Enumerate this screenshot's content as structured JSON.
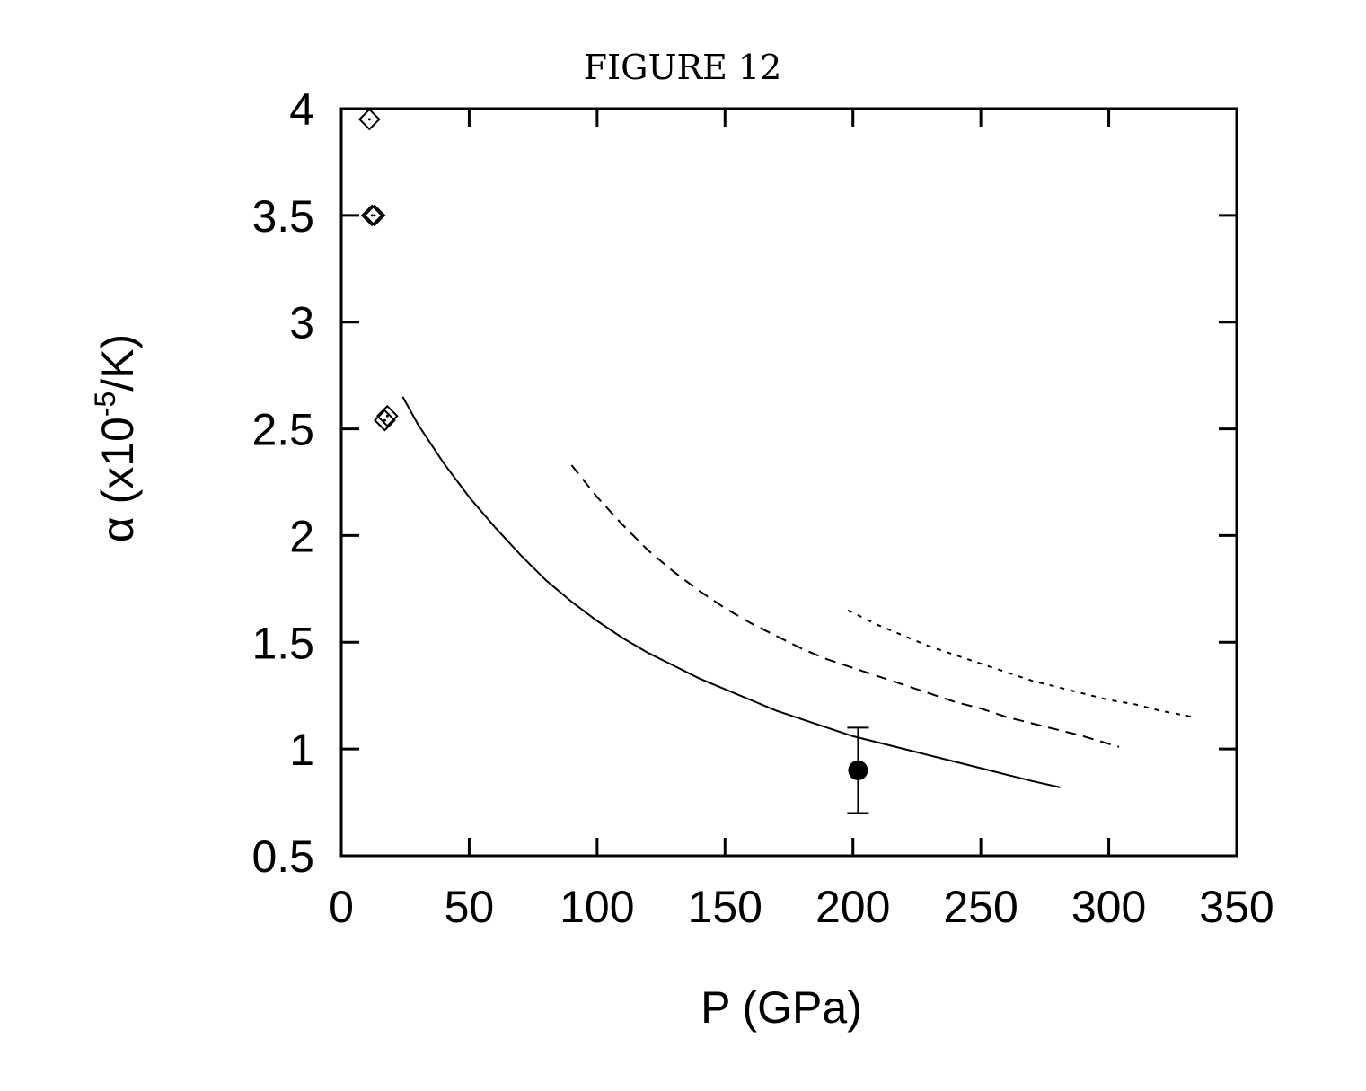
{
  "chart_data": {
    "type": "line",
    "title": "FIGURE 12",
    "xlabel": "P (GPa)",
    "ylabel": {
      "prefix": "α (x10",
      "superscript": "-5",
      "suffix": "/K)"
    },
    "xlim": [
      0,
      350
    ],
    "ylim": [
      0.5,
      4
    ],
    "x_ticks": [
      "0",
      "50",
      "100",
      "150",
      "200",
      "250",
      "300",
      "350"
    ],
    "y_ticks": [
      "0.5",
      "1",
      "1.5",
      "2",
      "2.5",
      "3",
      "3.5",
      "4"
    ],
    "grid": false,
    "legend": "none",
    "series": [
      {
        "style": "solid",
        "x": [
          24,
          30,
          40,
          50,
          60,
          70,
          80,
          90,
          100,
          110,
          120,
          130,
          140,
          150,
          160,
          170,
          180,
          190,
          200,
          210,
          220,
          230,
          240,
          250,
          260,
          270,
          281
        ],
        "y": [
          2.65,
          2.52,
          2.34,
          2.18,
          2.04,
          1.91,
          1.79,
          1.69,
          1.6,
          1.52,
          1.45,
          1.39,
          1.33,
          1.28,
          1.23,
          1.18,
          1.14,
          1.1,
          1.06,
          1.03,
          1.0,
          0.97,
          0.94,
          0.91,
          0.88,
          0.85,
          0.82
        ]
      },
      {
        "style": "dashed",
        "x": [
          90,
          100,
          110,
          120,
          130,
          140,
          150,
          160,
          170,
          180,
          190,
          200,
          210,
          220,
          230,
          240,
          250,
          260,
          270,
          280,
          290,
          304
        ],
        "y": [
          2.33,
          2.18,
          2.05,
          1.93,
          1.83,
          1.74,
          1.66,
          1.59,
          1.53,
          1.47,
          1.42,
          1.38,
          1.34,
          1.3,
          1.26,
          1.22,
          1.19,
          1.15,
          1.12,
          1.09,
          1.06,
          1.01
        ]
      },
      {
        "style": "dotted",
        "x": [
          198,
          210,
          220,
          230,
          240,
          250,
          260,
          270,
          280,
          290,
          300,
          310,
          320,
          333
        ],
        "y": [
          1.65,
          1.58,
          1.53,
          1.48,
          1.44,
          1.4,
          1.36,
          1.32,
          1.29,
          1.26,
          1.23,
          1.21,
          1.18,
          1.15
        ]
      }
    ],
    "open_diamond_points": [
      {
        "x": 11,
        "y": 3.95
      },
      {
        "x": 12,
        "y": 3.5
      },
      {
        "x": 13,
        "y": 3.5
      },
      {
        "x": 17,
        "y": 2.54
      },
      {
        "x": 18,
        "y": 2.56
      }
    ],
    "filled_point_with_error": {
      "x": 202,
      "y": 0.9,
      "err_low": 0.7,
      "err_high": 1.1
    }
  }
}
